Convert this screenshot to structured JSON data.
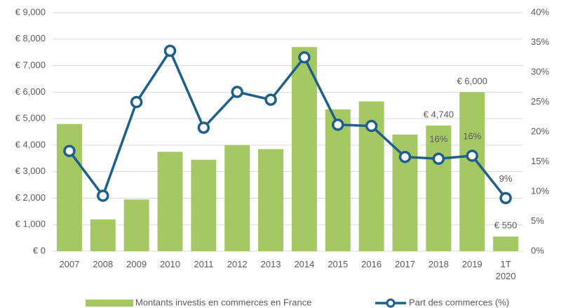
{
  "chart_data": {
    "type": "bar",
    "categories": [
      "2007",
      "2008",
      "2009",
      "2010",
      "2011",
      "2012",
      "2013",
      "2014",
      "2015",
      "2016",
      "2017",
      "2018",
      "2019",
      "1T\n2020"
    ],
    "series": [
      {
        "name": "Montants investis en commerces en France",
        "type": "bar",
        "color": "#a6c864",
        "values": [
          4800,
          1200,
          1950,
          3750,
          3450,
          4000,
          3850,
          7700,
          5350,
          5650,
          4400,
          4740,
          6000,
          550
        ],
        "value_labels": [
          null,
          null,
          null,
          null,
          null,
          null,
          null,
          null,
          null,
          null,
          null,
          "€ 4,740",
          "€ 6,000",
          "€ 550"
        ]
      },
      {
        "name": "Part des commerces (%)",
        "type": "line",
        "axis": "y2",
        "color": "#1f5f8b",
        "values": [
          16.8,
          9.3,
          25,
          33.6,
          20.7,
          26.7,
          25.4,
          32.5,
          21.2,
          21,
          15.8,
          15.5,
          16,
          8.9
        ],
        "value_labels": [
          null,
          null,
          null,
          null,
          null,
          null,
          null,
          null,
          null,
          null,
          null,
          "16%",
          "16%",
          "9%"
        ]
      }
    ],
    "ylim": [
      0,
      9000
    ],
    "yticks": [
      {
        "value": 0,
        "label": "€ 0"
      },
      {
        "value": 1000,
        "label": "€ 1,000"
      },
      {
        "value": 2000,
        "label": "€ 2,000"
      },
      {
        "value": 3000,
        "label": "€ 3,000"
      },
      {
        "value": 4000,
        "label": "€ 4,000"
      },
      {
        "value": 5000,
        "label": "€ 5,000"
      },
      {
        "value": 6000,
        "label": "€ 6,000"
      },
      {
        "value": 7000,
        "label": "€ 7,000"
      },
      {
        "value": 8000,
        "label": "€ 8,000"
      },
      {
        "value": 9000,
        "label": "€ 9,000"
      }
    ],
    "y2lim": [
      0,
      40
    ],
    "y2ticks": [
      {
        "value": 0,
        "label": "0%"
      },
      {
        "value": 5,
        "label": "5%"
      },
      {
        "value": 10,
        "label": "10%"
      },
      {
        "value": 15,
        "label": "15%"
      },
      {
        "value": 20,
        "label": "20%"
      },
      {
        "value": 25,
        "label": "25%"
      },
      {
        "value": 30,
        "label": "30%"
      },
      {
        "value": 35,
        "label": "35%"
      },
      {
        "value": 40,
        "label": "40%"
      }
    ],
    "grid": true,
    "legend": "bottom"
  }
}
